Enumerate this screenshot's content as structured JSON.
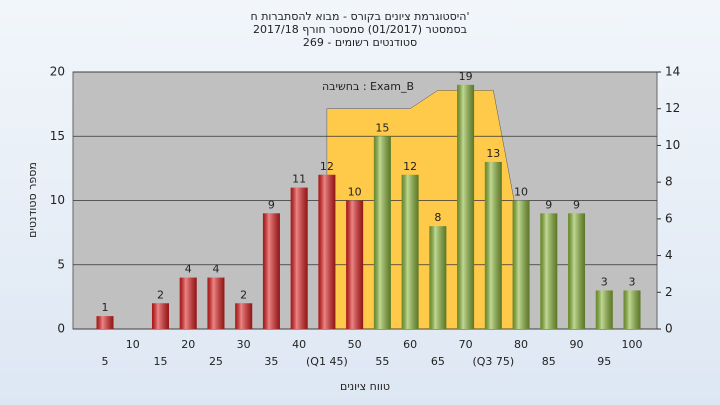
{
  "chart_data": {
    "type": "bar",
    "title": [
      "היסטוגרמת ציונים בקורס - מבוא להסתברות ח'",
      "בסמסטר  (01/2017)  סמסטר חורף  2017/18",
      "סטודנטים רשומים - 269"
    ],
    "annotation": "בחשיבה : Exam_B",
    "x_label": "טווח ציונים",
    "y_label": "מספר סטודנטים",
    "categories": [
      "5",
      "10",
      "15",
      "20",
      "25",
      "30",
      "35",
      "40",
      "(Q1 45)",
      "50",
      "55",
      "60",
      "65",
      "70",
      "(Q3 75)",
      "80",
      "85",
      "90",
      "95",
      "100"
    ],
    "values": [
      1,
      0,
      2,
      4,
      4,
      2,
      9,
      11,
      12,
      10,
      15,
      12,
      8,
      19,
      13,
      10,
      9,
      9,
      3,
      3
    ],
    "colors": [
      "#e02020",
      "#e02020",
      "#e02020",
      "#e02020",
      "#e02020",
      "#e02020",
      "#e02020",
      "#e02020",
      "#e02020",
      "#e02020",
      "#8cb83a",
      "#8cb83a",
      "#8cb83a",
      "#8cb83a",
      "#8cb83a",
      "#8cb83a",
      "#8cb83a",
      "#8cb83a",
      "#8cb83a",
      "#8cb83a"
    ],
    "band": {
      "axis": "y2",
      "color": "#ffc94a",
      "values": [
        null,
        null,
        null,
        null,
        null,
        null,
        null,
        null,
        12,
        12,
        12,
        12,
        13,
        13,
        13,
        5,
        null,
        null,
        null,
        null
      ]
    },
    "ylim": [
      0,
      20
    ],
    "yticks": [
      0,
      5,
      10,
      15,
      20
    ],
    "y2lim": [
      0,
      14
    ],
    "y2ticks": [
      0,
      2,
      4,
      6,
      8,
      10,
      12,
      14
    ],
    "grid": true
  }
}
